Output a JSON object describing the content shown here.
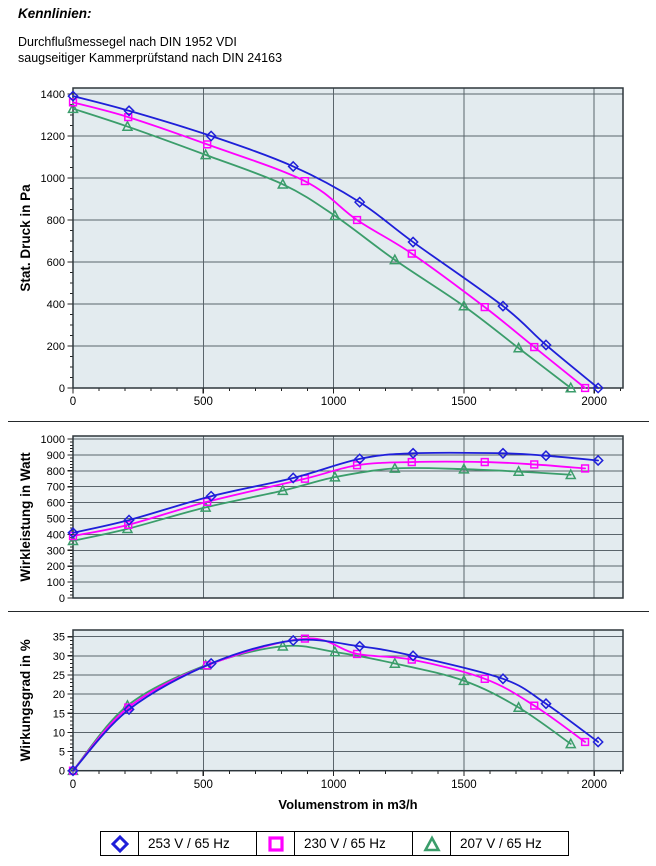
{
  "header": {
    "title": "Kennlinien:",
    "line1": "Durchflußmessegel nach DIN 1952 VDI",
    "line2": "saugseitiger Kammerprüfstand nach DIN 24163"
  },
  "xaxis": {
    "title": "Volumenstrom in m3/h",
    "ticks": [
      0,
      500,
      1000,
      1500,
      2000
    ],
    "minor_step": 100,
    "max": 2110
  },
  "colors": {
    "plot_bg": "#e3ebef",
    "grid": "#5a646b",
    "border": "#2e373c",
    "tick": "#222222",
    "blue": "#1f1fd9",
    "magenta": "#ff00ff",
    "green": "#3b9d6b"
  },
  "legend": [
    {
      "label": "253 V / 65 Hz",
      "marker": "diamond",
      "color": "#1f1fd9"
    },
    {
      "label": "230 V / 65 Hz",
      "marker": "square",
      "color": "#ff00ff"
    },
    {
      "label": "207 V / 65 Hz",
      "marker": "triangle",
      "color": "#3b9d6b"
    }
  ],
  "chart_data": [
    {
      "type": "line",
      "title": "",
      "xlabel": "Volumenstrom in m3/h",
      "ylabel": "Stat. Druck in Pa",
      "xlim": [
        0,
        2110
      ],
      "ylim": [
        0,
        1430
      ],
      "yticks": [
        0,
        200,
        400,
        600,
        800,
        1000,
        1200,
        1400
      ],
      "yminor_step": 50,
      "xticks": [
        0,
        500,
        1000,
        1500,
        2000
      ],
      "xtick_labels_visible": true,
      "grid": true,
      "series": [
        {
          "name": "253 V / 65 Hz",
          "marker": "diamond",
          "color": "#1f1fd9",
          "points": [
            [
              0,
              1390
            ],
            [
              215,
              1320
            ],
            [
              530,
              1200
            ],
            [
              845,
              1055
            ],
            [
              1100,
              885
            ],
            [
              1305,
              695
            ],
            [
              1650,
              390
            ],
            [
              1815,
              205
            ],
            [
              2015,
              0
            ]
          ]
        },
        {
          "name": "230 V / 65 Hz",
          "marker": "square",
          "color": "#ff00ff",
          "points": [
            [
              0,
              1360
            ],
            [
              212,
              1290
            ],
            [
              515,
              1160
            ],
            [
              890,
              985
            ],
            [
              1090,
              800
            ],
            [
              1300,
              640
            ],
            [
              1580,
              385
            ],
            [
              1770,
              195
            ],
            [
              1965,
              0
            ]
          ]
        },
        {
          "name": "207 V / 65 Hz",
          "marker": "triangle",
          "color": "#3b9d6b",
          "points": [
            [
              0,
              1330
            ],
            [
              209,
              1245
            ],
            [
              509,
              1110
            ],
            [
              805,
              970
            ],
            [
              1005,
              820
            ],
            [
              1235,
              610
            ],
            [
              1500,
              390
            ],
            [
              1710,
              190
            ],
            [
              1910,
              0
            ]
          ]
        }
      ]
    },
    {
      "type": "line",
      "title": "",
      "xlabel": "Volumenstrom in m3/h",
      "ylabel": "Wirkleistung in Watt",
      "xlim": [
        0,
        2110
      ],
      "ylim": [
        0,
        1020
      ],
      "yticks": [
        0,
        100,
        200,
        300,
        400,
        500,
        600,
        700,
        800,
        900,
        1000
      ],
      "yminor_step": 20,
      "xticks": [
        0,
        500,
        1000,
        1500,
        2000
      ],
      "xtick_labels_visible": false,
      "grid": true,
      "series": [
        {
          "name": "253 V / 65 Hz",
          "marker": "diamond",
          "color": "#1f1fd9",
          "points": [
            [
              0,
              410
            ],
            [
              215,
              490
            ],
            [
              530,
              640
            ],
            [
              845,
              755
            ],
            [
              1100,
              875
            ],
            [
              1305,
              910
            ],
            [
              1650,
              910
            ],
            [
              1815,
              895
            ],
            [
              2015,
              865
            ]
          ]
        },
        {
          "name": "230 V / 65 Hz",
          "marker": "square",
          "color": "#ff00ff",
          "points": [
            [
              0,
              390
            ],
            [
              212,
              460
            ],
            [
              515,
              605
            ],
            [
              890,
              750
            ],
            [
              1090,
              835
            ],
            [
              1300,
              855
            ],
            [
              1580,
              855
            ],
            [
              1770,
              840
            ],
            [
              1965,
              815
            ]
          ]
        },
        {
          "name": "207 V / 65 Hz",
          "marker": "triangle",
          "color": "#3b9d6b",
          "points": [
            [
              0,
              360
            ],
            [
              209,
              435
            ],
            [
              509,
              570
            ],
            [
              805,
              675
            ],
            [
              1005,
              760
            ],
            [
              1235,
              815
            ],
            [
              1500,
              810
            ],
            [
              1710,
              795
            ],
            [
              1910,
              775
            ]
          ]
        }
      ]
    },
    {
      "type": "line",
      "title": "",
      "xlabel": "Volumenstrom in m3/h",
      "ylabel": "Wirkungsgrad in %",
      "xlim": [
        0,
        2110
      ],
      "ylim": [
        0,
        36.8
      ],
      "yticks": [
        0,
        5,
        10,
        15,
        20,
        25,
        30,
        35
      ],
      "yminor_step": 1,
      "xticks": [
        0,
        500,
        1000,
        1500,
        2000
      ],
      "xtick_labels_visible": true,
      "grid": true,
      "series": [
        {
          "name": "253 V / 65 Hz",
          "marker": "diamond",
          "color": "#1f1fd9",
          "points": [
            [
              0,
              0
            ],
            [
              215,
              16
            ],
            [
              530,
              28
            ],
            [
              845,
              34
            ],
            [
              1100,
              32.5
            ],
            [
              1305,
              30
            ],
            [
              1650,
              24
            ],
            [
              1815,
              17.5
            ],
            [
              2015,
              7.5
            ]
          ]
        },
        {
          "name": "230 V / 65 Hz",
          "marker": "square",
          "color": "#ff00ff",
          "points": [
            [
              0,
              0
            ],
            [
              212,
              16.5
            ],
            [
              515,
              27.5
            ],
            [
              890,
              34.5
            ],
            [
              1090,
              30.5
            ],
            [
              1300,
              29
            ],
            [
              1580,
              24
            ],
            [
              1770,
              17
            ],
            [
              1965,
              7.5
            ]
          ]
        },
        {
          "name": "207 V / 65 Hz",
          "marker": "triangle",
          "color": "#3b9d6b",
          "points": [
            [
              0,
              0
            ],
            [
              209,
              17
            ],
            [
              509,
              27.5
            ],
            [
              805,
              32.5
            ],
            [
              1005,
              31
            ],
            [
              1235,
              28
            ],
            [
              1500,
              23.5
            ],
            [
              1710,
              16.5
            ],
            [
              1910,
              7
            ]
          ]
        }
      ]
    }
  ]
}
